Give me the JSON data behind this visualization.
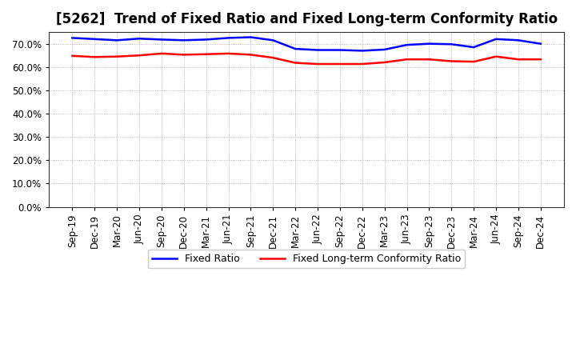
{
  "title": "[5262]  Trend of Fixed Ratio and Fixed Long-term Conformity Ratio",
  "x_labels": [
    "Sep-19",
    "Dec-19",
    "Mar-20",
    "Jun-20",
    "Sep-20",
    "Dec-20",
    "Mar-21",
    "Jun-21",
    "Sep-21",
    "Dec-21",
    "Mar-22",
    "Jun-22",
    "Sep-22",
    "Dec-22",
    "Mar-23",
    "Jun-23",
    "Sep-23",
    "Dec-23",
    "Mar-24",
    "Jun-24",
    "Sep-24",
    "Dec-24"
  ],
  "fixed_ratio": [
    72.5,
    72.0,
    71.5,
    72.2,
    71.8,
    71.5,
    71.8,
    72.5,
    72.8,
    71.5,
    67.8,
    67.3,
    67.3,
    67.0,
    67.5,
    69.5,
    70.0,
    69.8,
    68.5,
    72.0,
    71.5,
    70.0
  ],
  "fixed_lt_ratio": [
    64.8,
    64.3,
    64.5,
    65.0,
    65.8,
    65.3,
    65.5,
    65.8,
    65.3,
    64.0,
    61.8,
    61.3,
    61.3,
    61.3,
    62.0,
    63.3,
    63.3,
    62.5,
    62.3,
    64.5,
    63.3,
    63.3
  ],
  "fixed_ratio_color": "#0000FF",
  "fixed_lt_ratio_color": "#FF0000",
  "background_color": "#FFFFFF",
  "grid_color": "#999999",
  "legend_fixed_ratio": "Fixed Ratio",
  "legend_fixed_lt_ratio": "Fixed Long-term Conformity Ratio",
  "line_width": 1.8,
  "title_fontsize": 12,
  "tick_fontsize": 8.5,
  "legend_fontsize": 9
}
